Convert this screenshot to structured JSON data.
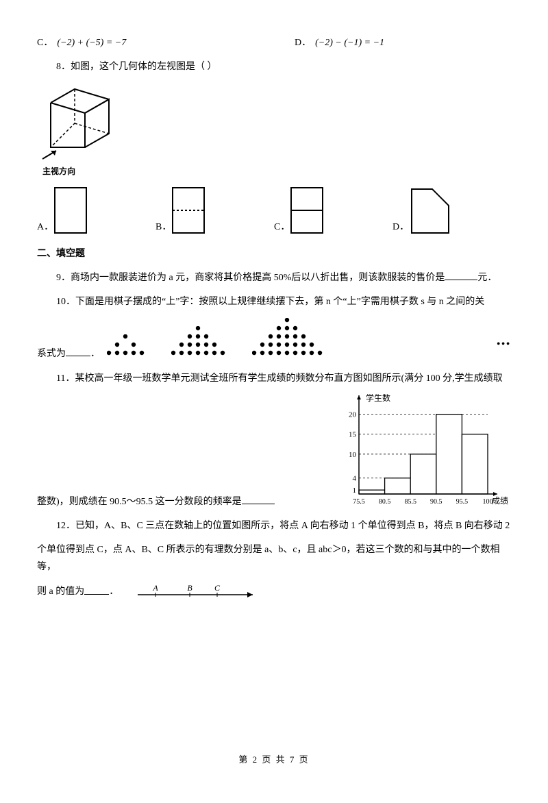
{
  "q7": {
    "optC": {
      "label": "C．",
      "expr": "(−2) + (−5) = −7"
    },
    "optD": {
      "label": "D．",
      "expr": "(−2) − (−1) = −1"
    }
  },
  "q8": {
    "num": "8．",
    "text": "如图，这个几何体的左视图是（    ）",
    "solidLabel": "主视方向",
    "optA": "A．",
    "optB": "B．",
    "optC": "C．",
    "optD": "D．"
  },
  "section2": "二、填空题",
  "q9": {
    "num": "9．",
    "textA": "商场内一款服装进价为 a 元，商家将其价格提高 50%后以八折出售，则该款服装的售价是",
    "textB": "元．"
  },
  "q10": {
    "num": "10．",
    "textA": "下面是用棋子摆成的“上”字：按照以上规律继续摆下去，第 n 个“上”字需用棋子数 s 与 n 之间的关",
    "textB": "系式为",
    "tail": "．",
    "ellipsis": "•••",
    "patterns": [
      [
        [
          2,
          0
        ],
        [
          1,
          1
        ],
        [
          3,
          1
        ],
        [
          0,
          2
        ],
        [
          1,
          2
        ],
        [
          2,
          2
        ],
        [
          3,
          2
        ],
        [
          4,
          2
        ]
      ],
      [
        [
          3,
          0
        ],
        [
          2,
          1
        ],
        [
          3,
          1
        ],
        [
          4,
          1
        ],
        [
          1,
          2
        ],
        [
          2,
          2
        ],
        [
          3,
          2
        ],
        [
          4,
          2
        ],
        [
          5,
          2
        ],
        [
          0,
          3
        ],
        [
          1,
          3
        ],
        [
          2,
          3
        ],
        [
          3,
          3
        ],
        [
          4,
          3
        ],
        [
          5,
          3
        ],
        [
          6,
          3
        ]
      ],
      [
        [
          4,
          0
        ],
        [
          3,
          1
        ],
        [
          4,
          1
        ],
        [
          5,
          1
        ],
        [
          2,
          2
        ],
        [
          3,
          2
        ],
        [
          4,
          2
        ],
        [
          5,
          2
        ],
        [
          6,
          2
        ],
        [
          1,
          3
        ],
        [
          2,
          3
        ],
        [
          3,
          3
        ],
        [
          4,
          3
        ],
        [
          5,
          3
        ],
        [
          6,
          3
        ],
        [
          7,
          3
        ],
        [
          0,
          4
        ],
        [
          1,
          4
        ],
        [
          2,
          4
        ],
        [
          3,
          4
        ],
        [
          4,
          4
        ],
        [
          5,
          4
        ],
        [
          6,
          4
        ],
        [
          7,
          4
        ],
        [
          8,
          4
        ]
      ]
    ]
  },
  "q11": {
    "num": "11．",
    "textA": "某校高一年级一班数学单元测试全班所有学生成绩的频数分布直方图如图所示(满分 100 分,学生成绩取",
    "textB": "整数)，则成绩在 90.5～95.5 这一分数段的频率是",
    "chart": {
      "type": "histogram",
      "ylabel": "学生数",
      "xlabel": "成绩",
      "xticks": [
        "75.5",
        "80.5",
        "85.5",
        "90.5",
        "95.5",
        "100"
      ],
      "yticks": [
        1,
        4,
        10,
        15,
        20
      ],
      "bars": [
        1,
        4,
        10,
        20,
        15
      ],
      "axis_color": "#000000",
      "bar_fill": "#ffffff",
      "bar_stroke": "#000000",
      "grid_dash": "3,3"
    }
  },
  "q12": {
    "num": "12．",
    "line1": "已知，A、B、C 三点在数轴上的位置如图所示，将点 A 向右移动 1 个单位得到点 B，将点 B 向右移动 2",
    "line2a": "个单位得到点 C，点 A、B、C 所表示的有理数分别是 a、b、c，且 abc＞0，若这三个数的和与其中的一个数相等，",
    "line3a": "则 a 的值为",
    "line3b": "．",
    "axis": {
      "labels": [
        "A",
        "B",
        "C"
      ]
    }
  },
  "footer": "第 2 页 共 7 页"
}
